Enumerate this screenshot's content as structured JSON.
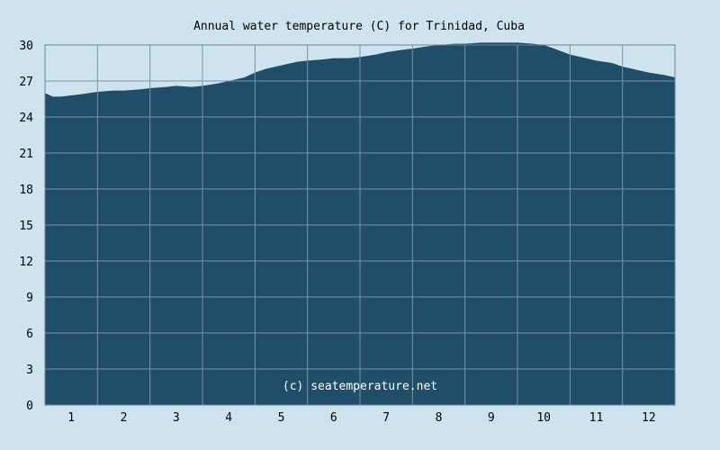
{
  "chart_data": {
    "type": "area",
    "title": "Annual water temperature (C) for Trinidad, Cuba",
    "watermark": "(c) seatemperature.net",
    "xlabel": "",
    "ylabel": "",
    "x_ticks": [
      "1",
      "2",
      "3",
      "4",
      "5",
      "6",
      "7",
      "8",
      "9",
      "10",
      "11",
      "12"
    ],
    "y_ticks": [
      "0",
      "3",
      "6",
      "9",
      "12",
      "15",
      "18",
      "21",
      "24",
      "27",
      "30"
    ],
    "xlim": [
      0.5,
      12.5
    ],
    "ylim": [
      0,
      30
    ],
    "grid": true,
    "colors": {
      "background": "#cde3ee",
      "area_fill": "#1f4e69",
      "grid": "#7b93a6",
      "frame": "#6a8496"
    },
    "series": [
      {
        "x": [
          0.5,
          0.65,
          0.8,
          1.0,
          1.2,
          1.5,
          1.8,
          2.0,
          2.3,
          2.5,
          2.8,
          3.0,
          3.3,
          3.5,
          3.8,
          4.0,
          4.3,
          4.5,
          4.7,
          5.0,
          5.3,
          5.5,
          5.8,
          6.0,
          6.3,
          6.5,
          6.8,
          7.0,
          7.3,
          7.5,
          7.8,
          8.0,
          8.3,
          8.5,
          8.8,
          9.0,
          9.3,
          9.5,
          9.8,
          10.0,
          10.2,
          10.5,
          10.8,
          11.0,
          11.3,
          11.5,
          11.8,
          12.0,
          12.3,
          12.5
        ],
        "values": [
          26.0,
          25.7,
          25.7,
          25.8,
          25.9,
          26.1,
          26.2,
          26.2,
          26.3,
          26.4,
          26.5,
          26.6,
          26.5,
          26.6,
          26.8,
          27.0,
          27.3,
          27.7,
          28.0,
          28.3,
          28.6,
          28.7,
          28.8,
          28.9,
          28.9,
          29.0,
          29.2,
          29.4,
          29.6,
          29.7,
          29.9,
          30.0,
          30.1,
          30.1,
          30.2,
          30.2,
          30.2,
          30.2,
          30.1,
          30.0,
          29.7,
          29.2,
          28.9,
          28.7,
          28.5,
          28.2,
          27.9,
          27.7,
          27.5,
          27.3
        ]
      }
    ]
  }
}
